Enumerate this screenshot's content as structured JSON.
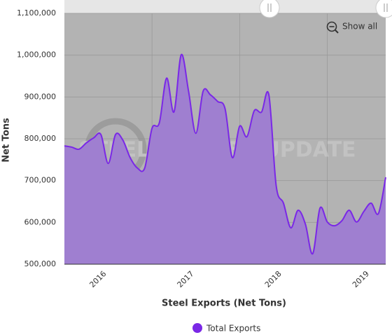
{
  "chart_data": {
    "type": "area",
    "x_axis_label": "Steel Exports (Net Tons)",
    "y_axis_label": "Net Tons",
    "button": "Show all",
    "watermark": "STEEL MARKET UPDATE",
    "categories": [
      null,
      null,
      null,
      null,
      null,
      "2016",
      null,
      null,
      null,
      null,
      null,
      null,
      null,
      null,
      null,
      null,
      null,
      "2017",
      null,
      null,
      null,
      null,
      null,
      null,
      null,
      null,
      null,
      null,
      null,
      "2018",
      null,
      null,
      null,
      null,
      null,
      null,
      null,
      null,
      null,
      null,
      null,
      "2019",
      null,
      null,
      null
    ],
    "series": [
      {
        "name": "Total Exports",
        "color": "#7a28e6",
        "fill": "#9f7fd0",
        "values": [
          783000,
          780000,
          775000,
          790000,
          802000,
          810000,
          741000,
          810000,
          797000,
          755000,
          730000,
          730000,
          825000,
          838000,
          945000,
          864000,
          1001000,
          914000,
          813000,
          914000,
          905000,
          889000,
          872000,
          755000,
          830000,
          805000,
          867000,
          864000,
          905000,
          688000,
          646000,
          587000,
          629000,
          596000,
          525000,
          634000,
          601000,
          592000,
          604000,
          629000,
          601000,
          626000,
          646000,
          621000,
          708000
        ]
      }
    ],
    "ylim": [
      500000,
      1100000
    ],
    "yticks": [
      {
        "value": 500000,
        "label": "500,000"
      },
      {
        "value": 600000,
        "label": "600,000"
      },
      {
        "value": 700000,
        "label": "700,000"
      },
      {
        "value": 800000,
        "label": "800,000"
      },
      {
        "value": 900000,
        "label": "900,000"
      },
      {
        "value": 1000000,
        "label": "1,000,000"
      },
      {
        "value": 1100000,
        "label": "1,100,000"
      }
    ],
    "grid": true,
    "legend": "bottom"
  }
}
